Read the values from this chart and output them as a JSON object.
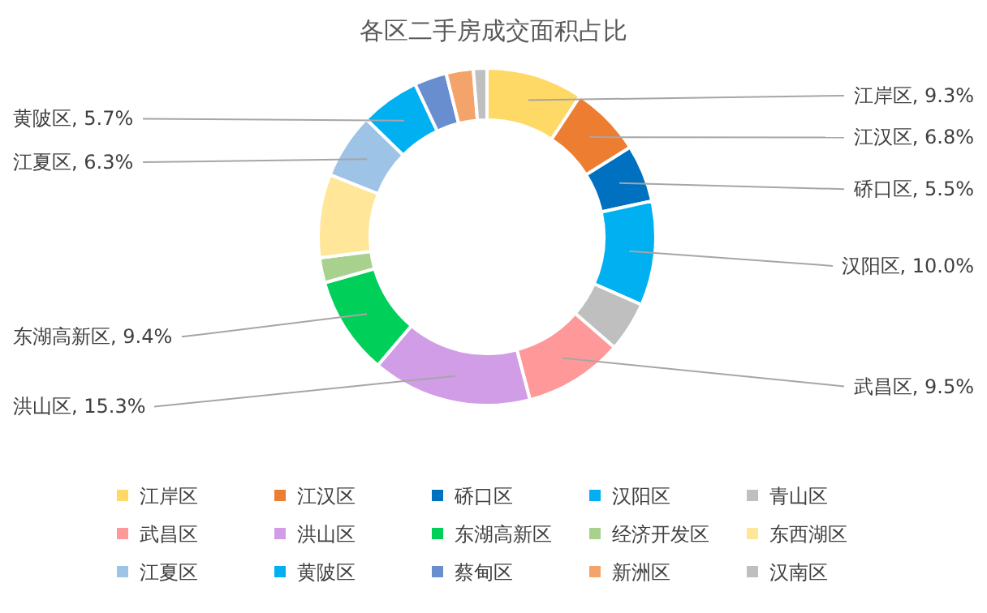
{
  "chart_data": {
    "type": "donut",
    "title": "各区二手房成交面积占比",
    "categories": [
      "江岸区",
      "江汉区",
      "硚口区",
      "汉阳区",
      "青山区",
      "武昌区",
      "洪山区",
      "东湖高新区",
      "经济开发区",
      "东西湖区",
      "江夏区",
      "黄陂区",
      "蔡甸区",
      "新洲区",
      "汉南区"
    ],
    "values": [
      9.3,
      6.8,
      5.5,
      10.0,
      4.8,
      9.5,
      15.3,
      9.4,
      2.4,
      8.0,
      6.3,
      5.7,
      3.1,
      2.6,
      1.3
    ],
    "colors": [
      "#ffd966",
      "#ed7d31",
      "#0070c0",
      "#00b0f0",
      "#bfbfbf",
      "#ff9999",
      "#d09de6",
      "#00d05a",
      "#a9d18e",
      "#ffe699",
      "#9dc3e6",
      "#00b0f0",
      "#698ed0",
      "#f4a46a",
      "#bfbfbf"
    ],
    "value_labels": [
      "江岸区, 9.3%",
      "江汉区, 6.8%",
      "硚口区, 5.5%",
      "汉阳区, 10.0%",
      null,
      "武昌区, 9.5%",
      "洪山区, 15.3%",
      "东湖高新区, 9.4%",
      null,
      null,
      "江夏区, 6.3%",
      "黄陂区, 5.7%",
      null,
      null,
      null
    ],
    "legend": "bottom"
  }
}
